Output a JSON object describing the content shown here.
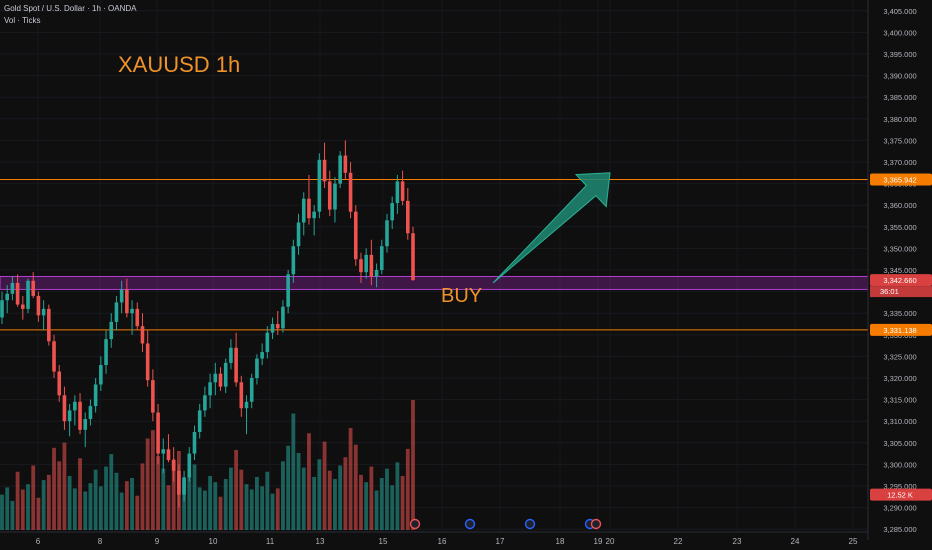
{
  "chart_data": {
    "type": "candlestick",
    "symbol_header": "Gold Spot / U.S. Dollar · 1h · OANDA",
    "volume_label": "Vol · Ticks",
    "annotations": {
      "title": "XAUUSD 1h",
      "signal": "BUY"
    },
    "y_axis": {
      "min": 3282.5,
      "max": 3407.5,
      "ticks": [
        "3,285.000",
        "3,290.000",
        "3,295.000",
        "3,300.000",
        "3,305.000",
        "3,310.000",
        "3,315.000",
        "3,320.000",
        "3,325.000",
        "3,330.000",
        "3,335.000",
        "3,340.000",
        "3,345.000",
        "3,350.000",
        "3,355.000",
        "3,360.000",
        "3,365.000",
        "3,370.000",
        "3,375.000",
        "3,380.000",
        "3,385.000",
        "3,390.000",
        "3,395.000",
        "3,400.000",
        "3,405.000"
      ]
    },
    "x_axis": {
      "labels": [
        "6",
        "8",
        "9",
        "10",
        "11",
        "13",
        "15",
        "16",
        "17",
        "18",
        "19",
        "20",
        "22",
        "23",
        "24",
        "25"
      ]
    },
    "price_lines": [
      {
        "value": 3365.942,
        "label": "3,365.942",
        "color": "#f57c00"
      },
      {
        "value": 3331.138,
        "label": "3,331.138",
        "color": "#f57c00"
      }
    ],
    "support_zone": {
      "from": 3340.5,
      "to": 3343.5,
      "color": "#9c27b0"
    },
    "current_price": {
      "value": 3342.66,
      "label": "3,342.660",
      "countdown": "36:01"
    },
    "volume_badge": "12.52 K",
    "arrow": {
      "from_price": 3342.0,
      "to_price": 3367.5,
      "color": "#1f8a73"
    },
    "ohlc": [
      [
        3334.0,
        3340.0,
        3332.5,
        3338.0
      ],
      [
        3338.0,
        3341.5,
        3335.0,
        3339.5
      ],
      [
        3339.5,
        3343.5,
        3338.0,
        3342.0
      ],
      [
        3342.0,
        3344.0,
        3336.5,
        3337.0
      ],
      [
        3337.0,
        3339.0,
        3333.5,
        3336.0
      ],
      [
        3336.0,
        3343.0,
        3335.0,
        3342.5
      ],
      [
        3342.5,
        3344.5,
        3338.5,
        3339.0
      ],
      [
        3339.0,
        3340.0,
        3333.0,
        3334.5
      ],
      [
        3334.5,
        3338.0,
        3331.0,
        3336.0
      ],
      [
        3336.0,
        3337.0,
        3327.5,
        3328.5
      ],
      [
        3328.5,
        3330.0,
        3320.0,
        3321.5
      ],
      [
        3321.5,
        3323.0,
        3314.5,
        3316.0
      ],
      [
        3316.0,
        3318.0,
        3308.0,
        3310.0
      ],
      [
        3310.0,
        3314.0,
        3306.5,
        3312.5
      ],
      [
        3312.5,
        3316.0,
        3309.0,
        3314.5
      ],
      [
        3314.5,
        3316.5,
        3307.0,
        3308.0
      ],
      [
        3308.0,
        3312.0,
        3304.0,
        3310.5
      ],
      [
        3310.5,
        3315.0,
        3309.0,
        3313.5
      ],
      [
        3313.5,
        3320.0,
        3312.0,
        3318.5
      ],
      [
        3318.5,
        3325.0,
        3317.0,
        3323.0
      ],
      [
        3323.0,
        3331.0,
        3321.0,
        3329.0
      ],
      [
        3329.0,
        3335.0,
        3327.0,
        3333.0
      ],
      [
        3333.0,
        3339.0,
        3331.0,
        3337.5
      ],
      [
        3337.5,
        3342.5,
        3335.0,
        3340.5
      ],
      [
        3340.5,
        3343.0,
        3334.0,
        3335.0
      ],
      [
        3335.0,
        3338.0,
        3330.0,
        3336.0
      ],
      [
        3336.0,
        3337.5,
        3331.0,
        3332.0
      ],
      [
        3332.0,
        3335.0,
        3326.0,
        3328.0
      ],
      [
        3328.0,
        3331.0,
        3318.0,
        3319.5
      ],
      [
        3319.5,
        3322.0,
        3310.0,
        3312.0
      ],
      [
        3312.0,
        3314.0,
        3300.0,
        3302.5
      ],
      [
        3302.5,
        3306.0,
        3298.0,
        3303.5
      ],
      [
        3303.5,
        3307.0,
        3300.5,
        3301.0
      ],
      [
        3301.0,
        3304.0,
        3296.0,
        3298.5
      ],
      [
        3298.5,
        3300.0,
        3290.0,
        3293.0
      ],
      [
        3293.0,
        3298.5,
        3291.5,
        3297.0
      ],
      [
        3297.0,
        3304.0,
        3296.0,
        3302.5
      ],
      [
        3302.5,
        3309.0,
        3301.0,
        3307.5
      ],
      [
        3307.5,
        3314.0,
        3306.0,
        3312.5
      ],
      [
        3312.5,
        3318.0,
        3311.0,
        3316.0
      ],
      [
        3316.0,
        3321.0,
        3313.0,
        3319.0
      ],
      [
        3319.0,
        3323.5,
        3316.0,
        3321.0
      ],
      [
        3321.0,
        3322.5,
        3317.0,
        3318.0
      ],
      [
        3318.0,
        3324.5,
        3316.5,
        3323.5
      ],
      [
        3323.5,
        3329.0,
        3322.0,
        3327.0
      ],
      [
        3327.0,
        3330.5,
        3318.0,
        3319.0
      ],
      [
        3319.0,
        3320.5,
        3311.0,
        3313.0
      ],
      [
        3313.0,
        3316.0,
        3307.0,
        3314.5
      ],
      [
        3314.5,
        3321.0,
        3313.0,
        3320.0
      ],
      [
        3320.0,
        3325.5,
        3318.5,
        3324.5
      ],
      [
        3324.5,
        3328.0,
        3323.0,
        3326.0
      ],
      [
        3326.0,
        3332.0,
        3324.5,
        3330.5
      ],
      [
        3330.5,
        3334.0,
        3329.0,
        3332.5
      ],
      [
        3332.5,
        3335.5,
        3330.0,
        3331.5
      ],
      [
        3331.5,
        3338.0,
        3330.5,
        3336.5
      ],
      [
        3336.5,
        3345.0,
        3335.0,
        3344.0
      ],
      [
        3344.0,
        3352.0,
        3342.0,
        3350.5
      ],
      [
        3350.5,
        3358.0,
        3348.5,
        3356.0
      ],
      [
        3356.0,
        3363.0,
        3353.0,
        3361.5
      ],
      [
        3361.5,
        3367.0,
        3355.5,
        3357.0
      ],
      [
        3357.0,
        3360.0,
        3353.0,
        3358.5
      ],
      [
        3358.5,
        3372.0,
        3357.0,
        3370.5
      ],
      [
        3370.5,
        3374.5,
        3364.0,
        3365.5
      ],
      [
        3365.5,
        3368.0,
        3357.5,
        3359.0
      ],
      [
        3359.0,
        3366.5,
        3356.0,
        3365.0
      ],
      [
        3365.0,
        3372.5,
        3364.0,
        3371.5
      ],
      [
        3371.5,
        3375.0,
        3366.0,
        3367.5
      ],
      [
        3367.5,
        3370.0,
        3357.0,
        3358.5
      ],
      [
        3358.5,
        3360.0,
        3346.0,
        3347.5
      ],
      [
        3347.5,
        3349.0,
        3342.0,
        3344.5
      ],
      [
        3344.5,
        3350.0,
        3343.0,
        3348.5
      ],
      [
        3348.5,
        3352.0,
        3341.5,
        3343.5
      ],
      [
        3343.5,
        3346.5,
        3341.0,
        3345.0
      ],
      [
        3345.0,
        3352.0,
        3344.0,
        3350.5
      ],
      [
        3350.5,
        3358.0,
        3349.0,
        3356.5
      ],
      [
        3356.5,
        3362.0,
        3354.5,
        3360.5
      ],
      [
        3360.5,
        3367.0,
        3358.0,
        3365.5
      ],
      [
        3365.5,
        3368.0,
        3360.0,
        3361.0
      ],
      [
        3361.0,
        3364.0,
        3352.0,
        3353.5
      ],
      [
        3353.5,
        3355.0,
        3342.5,
        3342.66
      ]
    ],
    "volume": [
      3.4,
      4.1,
      2.8,
      5.6,
      3.9,
      4.4,
      6.2,
      3.1,
      4.8,
      5.3,
      7.9,
      6.6,
      8.4,
      5.2,
      4.0,
      6.9,
      3.7,
      4.5,
      5.8,
      4.2,
      6.1,
      7.3,
      5.5,
      3.6,
      4.7,
      5.0,
      3.3,
      6.4,
      8.8,
      9.6,
      7.1,
      5.9,
      4.3,
      6.8,
      7.6,
      4.9,
      5.4,
      6.3,
      4.1,
      3.8,
      5.2,
      4.6,
      3.2,
      4.9,
      6.0,
      7.7,
      5.8,
      4.4,
      3.9,
      5.1,
      4.2,
      5.6,
      3.5,
      4.0,
      6.6,
      8.1,
      11.2,
      7.4,
      6.0,
      9.3,
      5.1,
      6.8,
      8.5,
      5.7,
      4.9,
      6.2,
      7.0,
      9.8,
      8.2,
      5.3,
      4.6,
      6.1,
      3.8,
      5.0,
      5.9,
      4.3,
      6.5,
      5.2,
      7.8,
      12.5
    ]
  }
}
